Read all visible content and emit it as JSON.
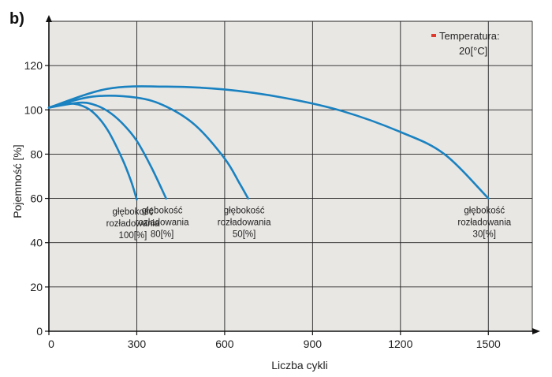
{
  "panel_label": "b)",
  "legend": {
    "line1": "Temperatura:",
    "line2": "20[°C]",
    "marker_color": "#e03a2f"
  },
  "chart_data": {
    "type": "line",
    "title": "",
    "xlabel": "Liczba cykli",
    "ylabel": "Pojemność [%]",
    "xlim": [
      0,
      1650
    ],
    "ylim": [
      0,
      140
    ],
    "xticks": [
      0,
      300,
      600,
      900,
      1200,
      1500
    ],
    "yticks": [
      0,
      20,
      40,
      60,
      80,
      100,
      120
    ],
    "grid": true,
    "line_color": "#1a82c0",
    "plot_background": "#e9e7e4",
    "series": [
      {
        "x": [
          0,
          50,
          100,
          150,
          200,
          250,
          280,
          300
        ],
        "y": [
          101,
          102.7,
          102.4,
          99,
          91,
          78,
          68,
          59.5
        ],
        "annotation": [
          "głębokość",
          "rozładowania",
          "100[%]"
        ]
      },
      {
        "x": [
          0,
          100,
          150,
          200,
          250,
          300,
          350,
          400
        ],
        "y": [
          101,
          103.2,
          102.5,
          99.5,
          94,
          86,
          74,
          60
        ],
        "annotation": [
          "głębokość",
          "rozładowania",
          "80[%]"
        ]
      },
      {
        "x": [
          0,
          150,
          300,
          400,
          500,
          600,
          650,
          680
        ],
        "y": [
          101,
          106,
          105.5,
          101.5,
          93,
          78,
          67,
          60
        ],
        "annotation": [
          "głębokość",
          "rozładowania",
          "50[%]"
        ]
      },
      {
        "x": [
          0,
          200,
          400,
          600,
          800,
          1000,
          1200,
          1350,
          1500
        ],
        "y": [
          101,
          109.5,
          110.5,
          109.2,
          105.5,
          99.5,
          90,
          80,
          60
        ],
        "annotation": [
          "głębokość",
          "rozładowania",
          "30[%]"
        ]
      }
    ]
  }
}
